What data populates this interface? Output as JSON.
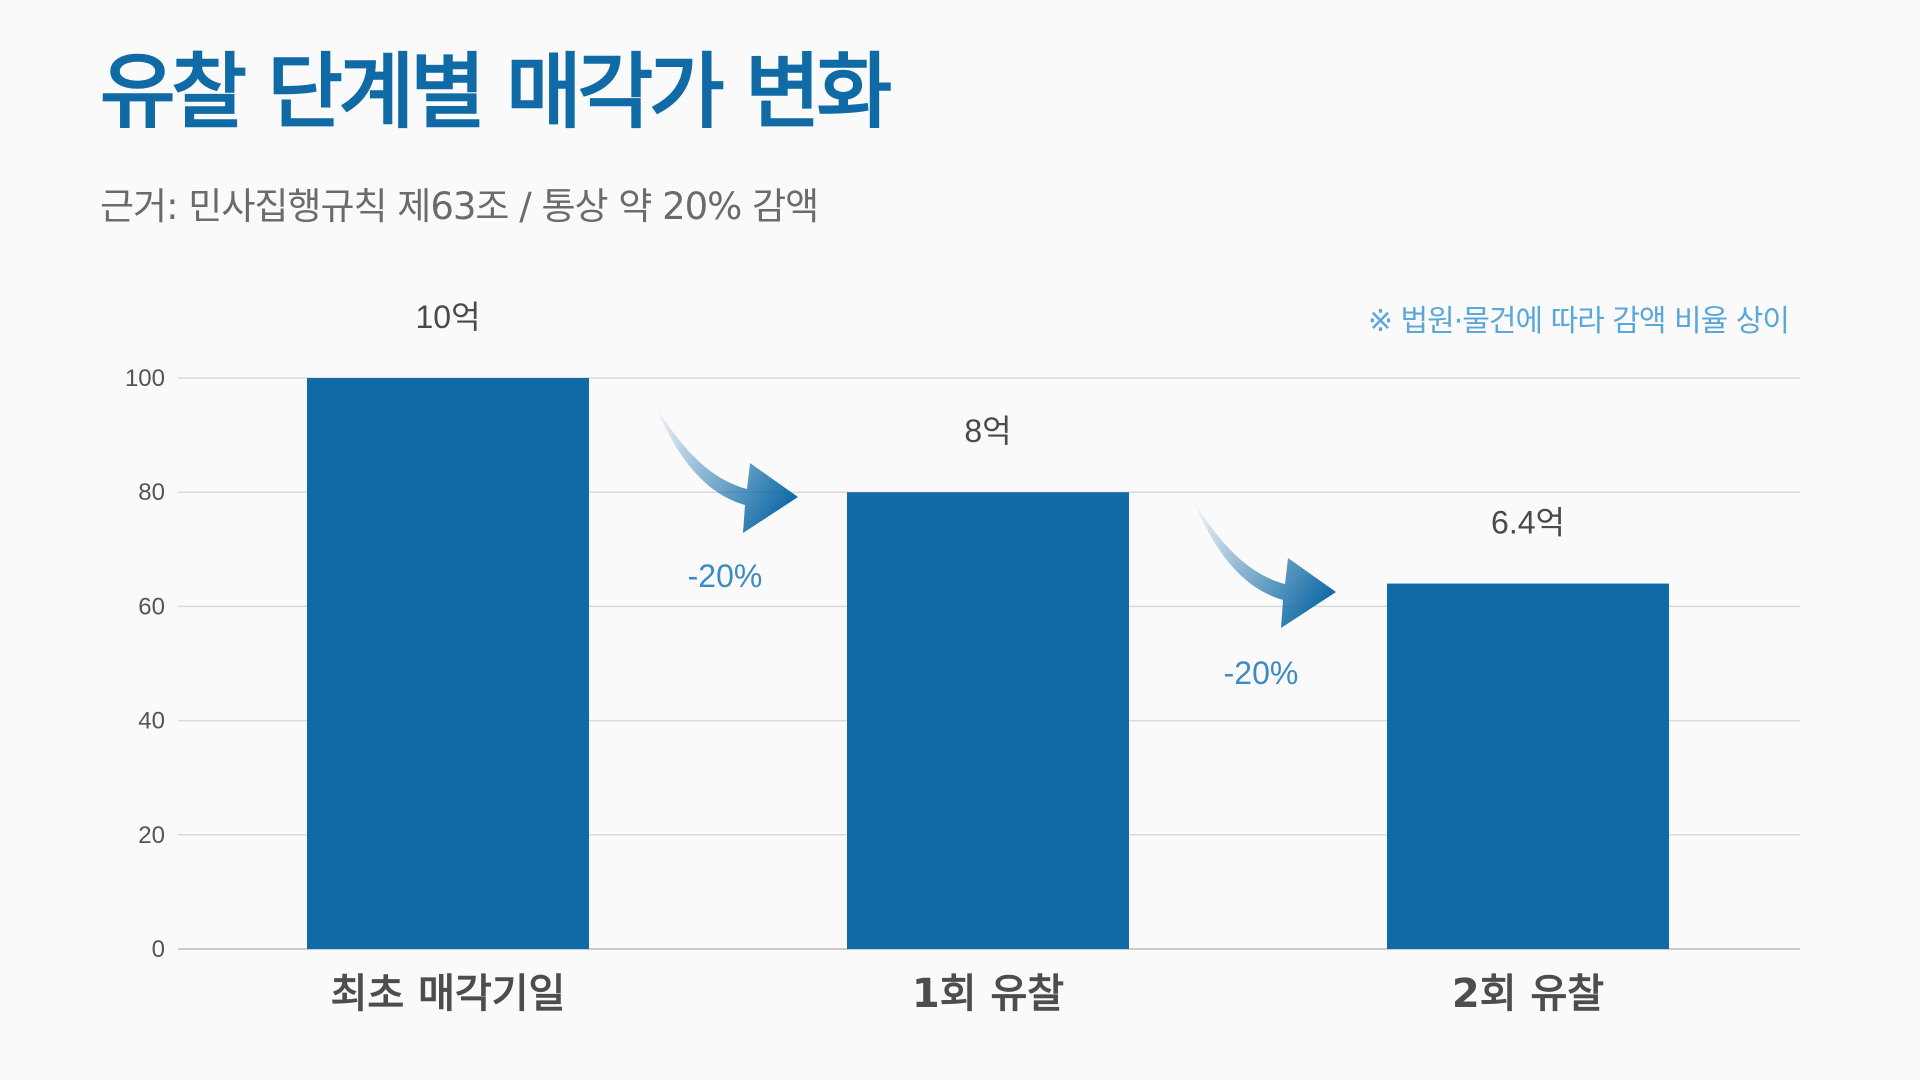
{
  "colors": {
    "bar": "#0f6aa6",
    "title": "#0f6aa6",
    "grid": "#d9d9d9",
    "arrow": "#0f6aa6",
    "change_text": "#3d8bc2",
    "note_text": "#5ba8d8"
  },
  "header": {
    "title": "유찰 단계별 매각가 변화",
    "subtitle": "근거: 민사집행규칙 제63조 / 통상 약 20% 감액",
    "note": "※ 법원·물건에 따라 감액 비율 상이"
  },
  "chart_data": {
    "type": "bar",
    "categories": [
      "최초 매각기일",
      "1회 유찰",
      "2회 유찰"
    ],
    "values": [
      100,
      80,
      64
    ],
    "data_labels": [
      "10억",
      "8억",
      "6.4억"
    ],
    "changes": [
      "-20%",
      "-20%"
    ],
    "ylim": [
      0,
      100
    ],
    "yticks": [
      0,
      20,
      40,
      60,
      80,
      100
    ],
    "grid": true
  }
}
